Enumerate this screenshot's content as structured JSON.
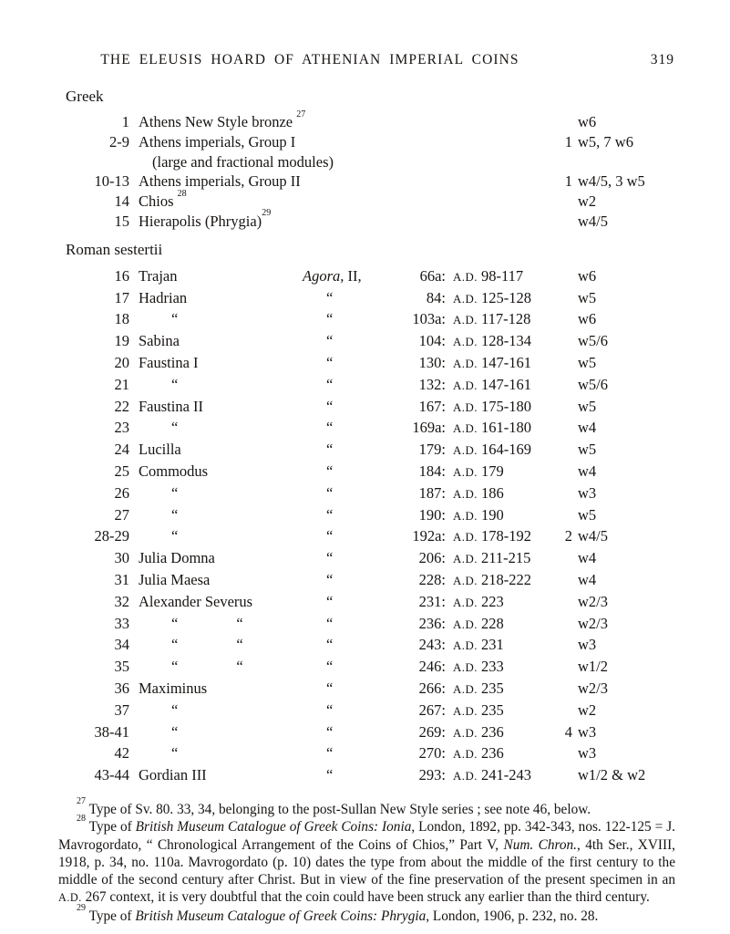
{
  "header": {
    "title": "THE ELEUSIS HOARD OF ATHENIAN IMPERIAL COINS",
    "page_number": "319"
  },
  "labels": {
    "era": "A.D."
  },
  "sections": [
    {
      "heading": "Greek",
      "rows": [
        {
          "num": "1",
          "name": "Athens New Style bronze ",
          "sup": "27",
          "wide": true,
          "w": "w6"
        },
        {
          "num": "2-9",
          "name": "Athens imperials, Group I",
          "wide": true,
          "count": "1",
          "w": "w5, 7 w6"
        },
        {
          "name": "(large and fractional modules)",
          "wide": true,
          "cont": true
        },
        {
          "num": "10-13",
          "name": "Athens imperials, Group II",
          "wide": true,
          "count": "1",
          "w": "w4/5, 3 w5"
        },
        {
          "num": "14",
          "name": "Chios ",
          "sup": "28",
          "wide": true,
          "w": "w2"
        },
        {
          "num": "15",
          "name": "Hierapolis (Phrygia)",
          "sup": "29",
          "wide": true,
          "w": "w4/5"
        }
      ]
    },
    {
      "heading": "Roman sestertii",
      "rows": [
        {
          "num": "16",
          "name": "Trajan",
          "agora_italic": "Agora,",
          "agora_rest": " II,",
          "cat": "66a:",
          "date": "98-117",
          "w": "w6"
        },
        {
          "num": "17",
          "name": "Hadrian",
          "agora_ditto": "“",
          "cat": "84:",
          "date": "125-128",
          "w": "w5"
        },
        {
          "num": "18",
          "ditto": "“",
          "agora_ditto": "“",
          "cat": "103a:",
          "date": "117-128",
          "w": "w6"
        },
        {
          "num": "19",
          "name": "Sabina",
          "agora_ditto": "“",
          "cat": "104:",
          "date": "128-134",
          "w": "w5/6"
        },
        {
          "num": "20",
          "name": "Faustina I",
          "agora_ditto": "“",
          "cat": "130:",
          "date": "147-161",
          "w": "w5"
        },
        {
          "num": "21",
          "ditto": "“",
          "agora_ditto": "“",
          "cat": "132:",
          "date": "147-161",
          "w": "w5/6"
        },
        {
          "num": "22",
          "name": "Faustina II",
          "agora_ditto": "“",
          "cat": "167:",
          "date": "175-180",
          "w": "w5"
        },
        {
          "num": "23",
          "ditto": "“",
          "agora_ditto": "“",
          "cat": "169a:",
          "date": "161-180",
          "w": "w4"
        },
        {
          "num": "24",
          "name": "Lucilla",
          "agora_ditto": "“",
          "cat": "179:",
          "date": "164-169",
          "w": "w5"
        },
        {
          "num": "25",
          "name": "Commodus",
          "agora_ditto": "“",
          "cat": "184:",
          "date": "179",
          "w": "w4"
        },
        {
          "num": "26",
          "ditto": "“",
          "agora_ditto": "“",
          "cat": "187:",
          "date": "186",
          "w": "w3"
        },
        {
          "num": "27",
          "ditto": "“",
          "agora_ditto": "“",
          "cat": "190:",
          "date": "190",
          "w": "w5"
        },
        {
          "num": "28-29",
          "ditto": "“",
          "agora_ditto": "“",
          "cat": "192a:",
          "date": "178-192",
          "count": "2",
          "w": "w4/5"
        },
        {
          "num": "30",
          "name": "Julia Domna",
          "agora_ditto": "“",
          "cat": "206:",
          "date": "211-215",
          "w": "w4"
        },
        {
          "num": "31",
          "name": "Julia Maesa",
          "agora_ditto": "“",
          "cat": "228:",
          "date": "218-222",
          "w": "w4"
        },
        {
          "num": "32",
          "name": "Alexander Severus",
          "agora_ditto": "“",
          "cat": "231:",
          "date": "223",
          "w": "w2/3"
        },
        {
          "num": "33",
          "ditto": "“",
          "ditto2": "“",
          "agora_ditto": "“",
          "cat": "236:",
          "date": "228",
          "w": "w2/3"
        },
        {
          "num": "34",
          "ditto": "“",
          "ditto2": "“",
          "agora_ditto": "“",
          "cat": "243:",
          "date": "231",
          "w": "w3"
        },
        {
          "num": "35",
          "ditto": "“",
          "ditto2": "“",
          "agora_ditto": "“",
          "cat": "246:",
          "date": "233",
          "w": "w1/2"
        },
        {
          "num": "36",
          "name": "Maximinus",
          "agora_ditto": "“",
          "cat": "266:",
          "date": "235",
          "w": "w2/3"
        },
        {
          "num": "37",
          "ditto": "“",
          "agora_ditto": "“",
          "cat": "267:",
          "date": "235",
          "w": "w2"
        },
        {
          "num": "38-41",
          "ditto": "“",
          "agora_ditto": "“",
          "cat": "269:",
          "date": "236",
          "count": "4",
          "w": "w3"
        },
        {
          "num": "42",
          "ditto": "“",
          "agora_ditto": "“",
          "cat": "270:",
          "date": "236",
          "w": "w3"
        },
        {
          "num": "43-44",
          "name": "Gordian III",
          "agora_ditto": "“",
          "cat": "293:",
          "date": "241-243",
          "w": "w1/2 & w2"
        }
      ]
    }
  ],
  "footnotes": [
    {
      "sup": "27",
      "segments": [
        {
          "t": "Type of Sv. 80. 33, 34, belonging to the post-Sullan New Style series ; see note 46, below."
        }
      ]
    },
    {
      "sup": "28",
      "segments": [
        {
          "t": "Type of "
        },
        {
          "t": "British Museum Catalogue of Greek Coins: Ionia",
          "style": "italic"
        },
        {
          "t": ", London, 1892, pp. 342-343, nos. 122-125 = J. Mavrogordato, “ Chronological Arrangement of the Coins of Chios,” Part V, "
        },
        {
          "t": "Num. Chron.",
          "style": "italic"
        },
        {
          "t": ", 4th Ser., XVIII, 1918, p. 34, no. 110a. Mavrogordato (p. 10) dates the type from about the middle of the first century to the middle of the second century after Christ. But in view of the fine preservation of the present specimen in an "
        },
        {
          "t": "A.D.",
          "style": "smallcaps"
        },
        {
          "t": " 267 context, it is very doubtful that the coin could have been struck any earlier than the third century."
        }
      ]
    },
    {
      "sup": "29",
      "segments": [
        {
          "t": "Type of "
        },
        {
          "t": "British Museum Catalogue of Greek Coins:  Phrygia",
          "style": "italic"
        },
        {
          "t": ", London, 1906, p. 232, no. 28."
        }
      ]
    }
  ]
}
